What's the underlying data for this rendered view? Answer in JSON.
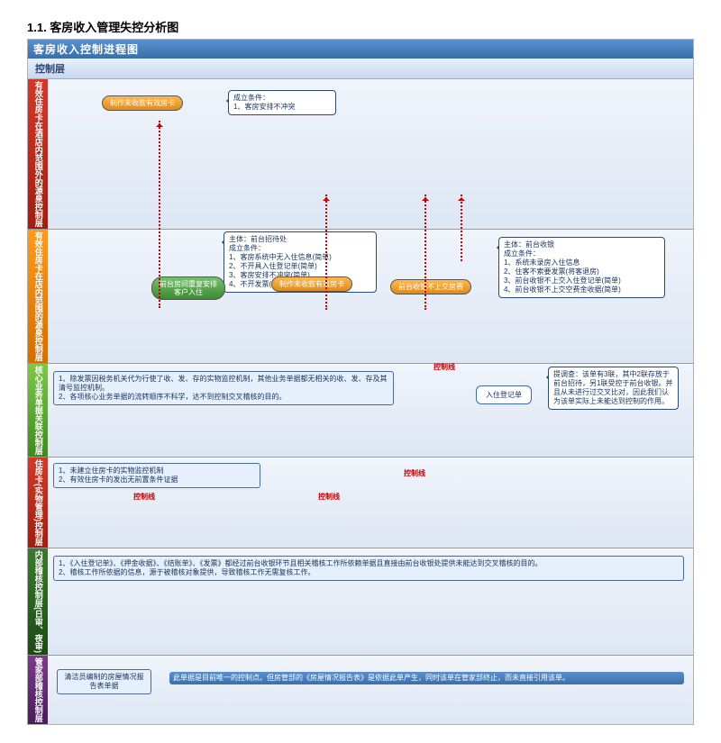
{
  "section_heading": "1.1.  客房收入管理失控分析图",
  "chart_title": "客房收入控制进程图",
  "top_band_label": "控制层",
  "row_labels": [
    {
      "bg": "linear-gradient(#d13a2a,#a01e10)",
      "text": "有效住房卡在酒店内范围外的源泉控制层"
    },
    {
      "bg": "linear-gradient(#ff9a1f,#d36e00)",
      "text": "有效住房卡在店内范围的源泉控制层"
    },
    {
      "bg": "linear-gradient(#7fc84a,#3f8a20)",
      "text": "核心业务单据关联控制层"
    },
    {
      "bg": "linear-gradient(#d13a2a,#a01e10)",
      "text": "住房卡(实物管理)控制层"
    },
    {
      "bg": "linear-gradient(#3c7a2e,#1c4a14)",
      "text": "内部稽核控制层(日审、夜审)"
    },
    {
      "bg": "linear-gradient(#7a3a8a,#4a1c5a)",
      "text": "管家部稽核控制层"
    }
  ],
  "row1": {
    "pill": "制作未收款有效房卡",
    "callout": "成立条件：\n1、客房安排不冲突"
  },
  "row2": {
    "pill_green": "前台房间重复安排\n客户入住",
    "pill_orange1": "制作未收款有效房卡",
    "pill_orange2": "前台收银不上交房费",
    "callout_left": "主体：前台招待处\n成立条件：\n1、客房系统中无入住信息(简单)\n2、不开具入住登记单(简单)\n3、客房安排不冲突(简单)\n4、不开发票(简单或团伙)",
    "callout_right": "主体：前台收银\n成立条件：\n1、系统未录房入住信息\n2、住客不索要发票(将客退房)\n3、前台收银不上交入住登记单(简单)\n4、前台收银不上交空费金收据(简单)"
  },
  "row3": {
    "text": "1、除发票因税务机关代为行使了收、发、存的实物监控机制，其他业务单据都无相关的收、发、存及其清号监控机制。\n2、各项核心业务单据的流转顺序不科学，达不到控制交叉稽核的目的。",
    "form_label": "入住登记单",
    "note": "提调查：该单有3联，其中2联存放于前台招待，另1联受控于前台收银。并且从未进行过交叉比对，因此我们认为该单实际上未能达到控制的作用。",
    "control_label": "控制线"
  },
  "row4": {
    "text": "1、未建立住房卡的实物监控机制\n2、有效住房卡的发出无前置条件证据",
    "control_label": "控制线"
  },
  "row5": {
    "text": "1、《入住登记单》、《押金收据》、《结账单》、《发票》都经过前台收银环节且相关稽核工作所依赖单据且直接由前台收银处提供未能达到交叉稽核的目的。\n2、稽核工作所依据的信息，源于被稽核对象提供，导致稽核工作无需复核工作。"
  },
  "row6": {
    "box": "清洁员编制的房屋情况报告表单据",
    "text": "此单据是目前唯一的控制点。但房管部的《房屋情况报告表》是依据此单产生，同时该单在管家部终止，而未直接引用该单。"
  },
  "colors": {
    "blue_grad_top": "#5a8fcf",
    "blue_grad_bot": "#3b6fa8",
    "lane_top": "#f0f4fb",
    "lane_bot": "#dde6f3"
  }
}
